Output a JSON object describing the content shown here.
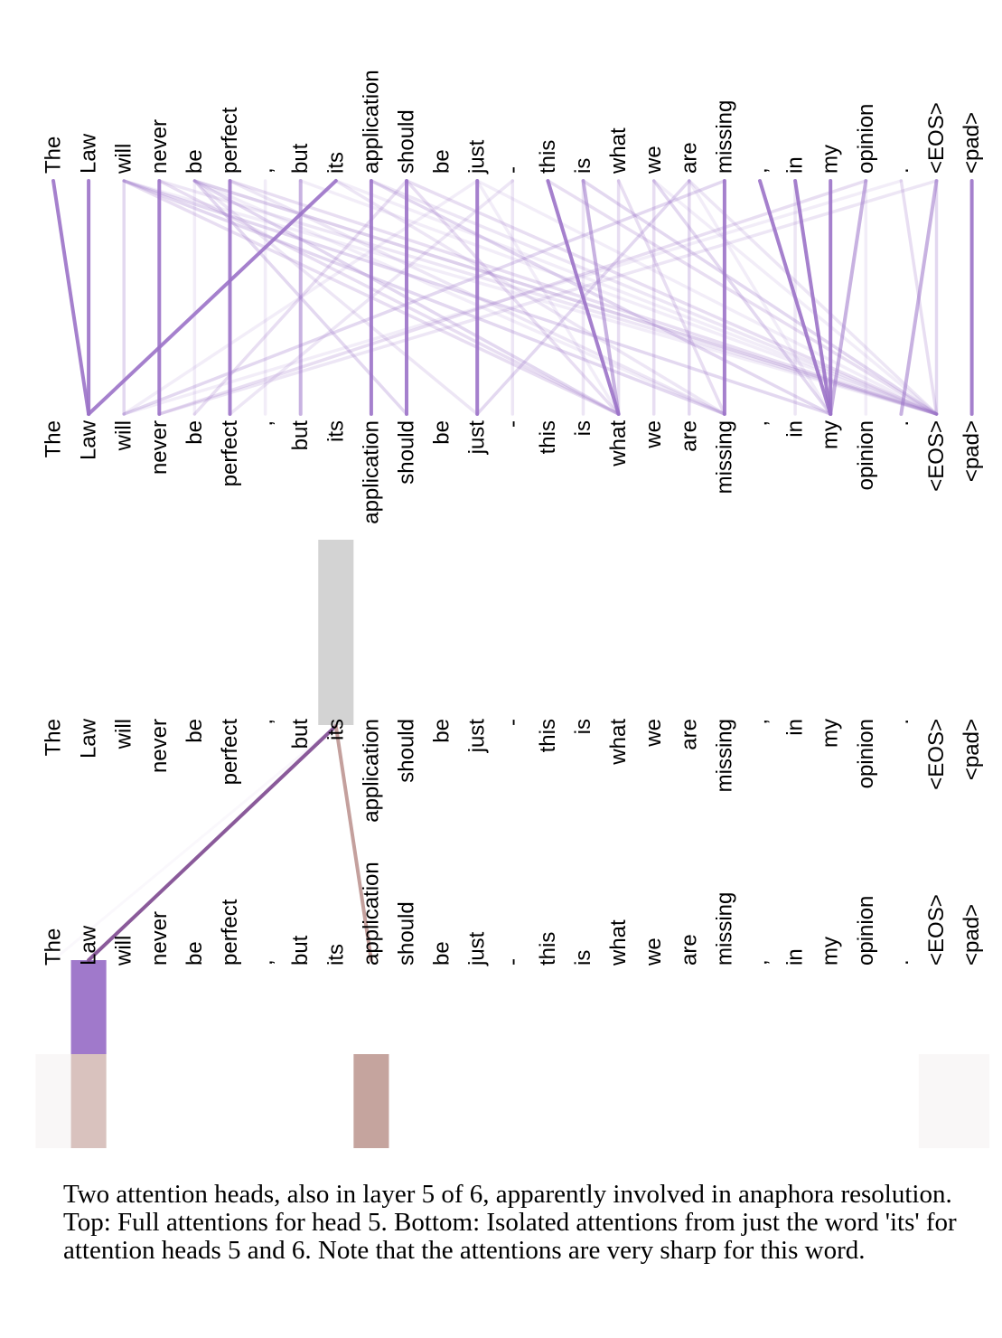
{
  "tokens": [
    "The",
    "Law",
    "will",
    "never",
    "be",
    "perfect",
    ",",
    "but",
    "its",
    "application",
    "should",
    "be",
    "just",
    "-",
    "this",
    "is",
    "what",
    "we",
    "are",
    "missing",
    ",",
    "in",
    "my",
    "opinion",
    ".",
    "<EOS>",
    "<pad>"
  ],
  "colors": {
    "head5": "#9b72c8",
    "head6": "#bf9a93",
    "line_head5": "#8a5a9a",
    "line_head6": "#c4a09d",
    "selected_token_bg": "#d3d3d3"
  },
  "top_panel": {
    "head": 5,
    "attention_edges": [
      {
        "from": "The",
        "to": "Law",
        "strength": "strong"
      },
      {
        "from": "Law",
        "to": "Law",
        "strength": "strong"
      },
      {
        "from": "its",
        "to": "Law",
        "strength": "strong"
      },
      {
        "from": "never",
        "to": "never",
        "strength": "strong"
      },
      {
        "from": "perfect",
        "to": "perfect",
        "strength": "strong"
      },
      {
        "from": "application",
        "to": "application",
        "strength": "strong"
      },
      {
        "from": "should",
        "to": "should",
        "strength": "strong"
      },
      {
        "from": "just",
        "to": "just",
        "strength": "strong"
      },
      {
        "from": "missing",
        "to": "missing",
        "strength": "strong"
      },
      {
        "from": "my",
        "to": "my",
        "strength": "strong"
      },
      {
        "from": "<pad>",
        "to": "<pad>",
        "strength": "strong"
      },
      {
        "from": "this",
        "to": "what",
        "strength": "strong"
      },
      {
        "from": ",",
        "to": "my",
        "strength": "strong"
      },
      {
        "from": "in",
        "to": "my",
        "strength": "strong"
      },
      {
        "from": "is",
        "to": "what",
        "strength": "medium"
      },
      {
        "from": "<EOS>",
        "to": ".",
        "strength": "medium"
      },
      {
        "from": "but",
        "to": "but",
        "strength": "medium"
      },
      {
        "from": "opinion",
        "to": "my",
        "strength": "medium"
      }
    ]
  },
  "bottom_panel": {
    "selected_word": "its",
    "heads": [
      5,
      6
    ],
    "attentions": [
      {
        "head": 5,
        "target": "Law",
        "weight": 0.95
      },
      {
        "head": 6,
        "target": "application",
        "weight": 0.9
      },
      {
        "head": 6,
        "target": "Law",
        "weight": 0.6
      }
    ]
  },
  "caption": "Two attention heads, also in layer 5 of 6, apparently involved in anaphora resolution. Top: Full attentions for head 5. Bottom: Isolated attentions from just the word 'its' for attention heads 5 and 6. Note that the attentions are very sharp for this word."
}
